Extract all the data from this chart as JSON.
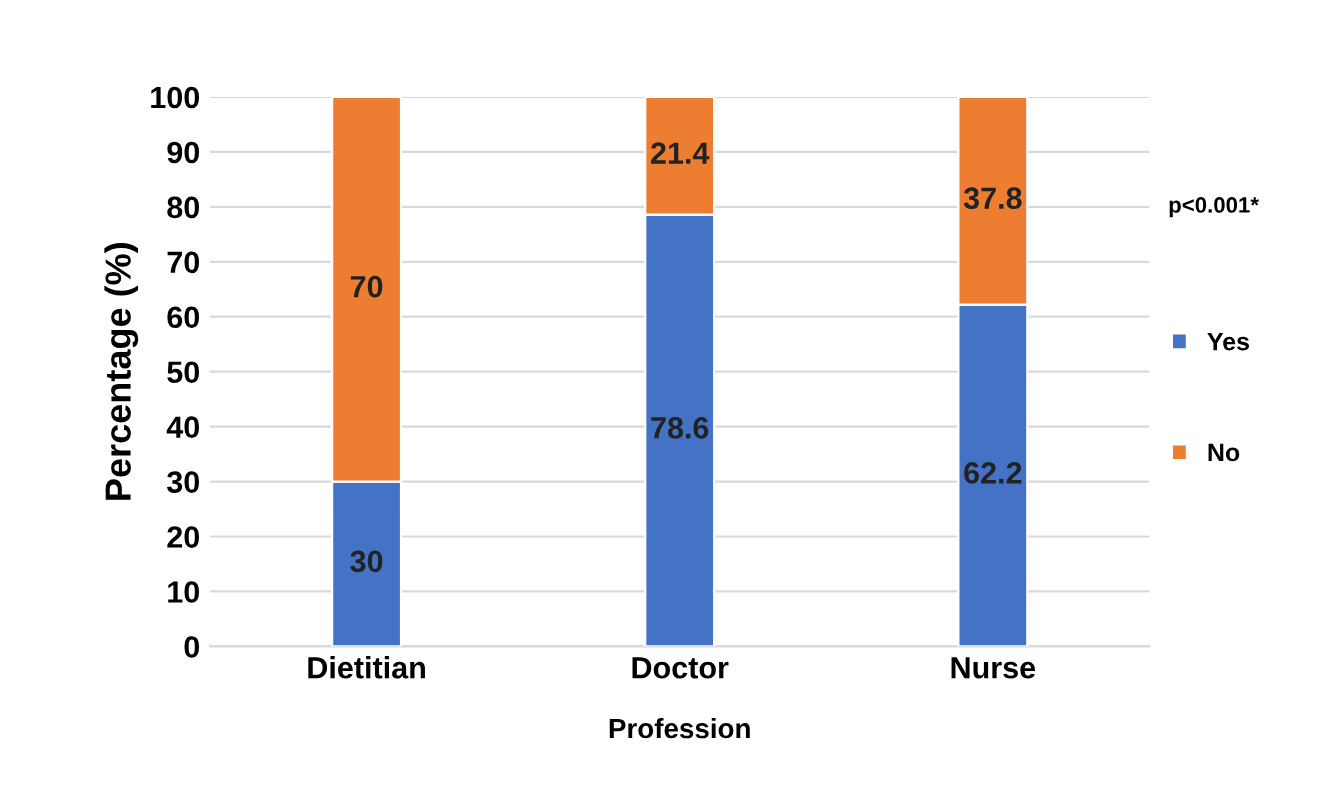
{
  "chart_data": {
    "type": "bar",
    "stacked": true,
    "xlabel": "Profession",
    "ylabel": "Percentage (%)",
    "categories": [
      "Dietitian",
      "Doctor",
      "Nurse"
    ],
    "series": [
      {
        "name": "Yes",
        "color": "#4472c4",
        "values": [
          30,
          78.6,
          62.2
        ]
      },
      {
        "name": "No",
        "color": "#ed7d31",
        "values": [
          70,
          21.4,
          37.8
        ]
      }
    ],
    "ylim": [
      0,
      100
    ],
    "yticks": [
      0,
      10,
      20,
      30,
      40,
      50,
      60,
      70,
      80,
      90,
      100
    ],
    "grid": "y",
    "legend": "right",
    "data_labels": true,
    "annotations": [
      "p<0.001*"
    ]
  }
}
